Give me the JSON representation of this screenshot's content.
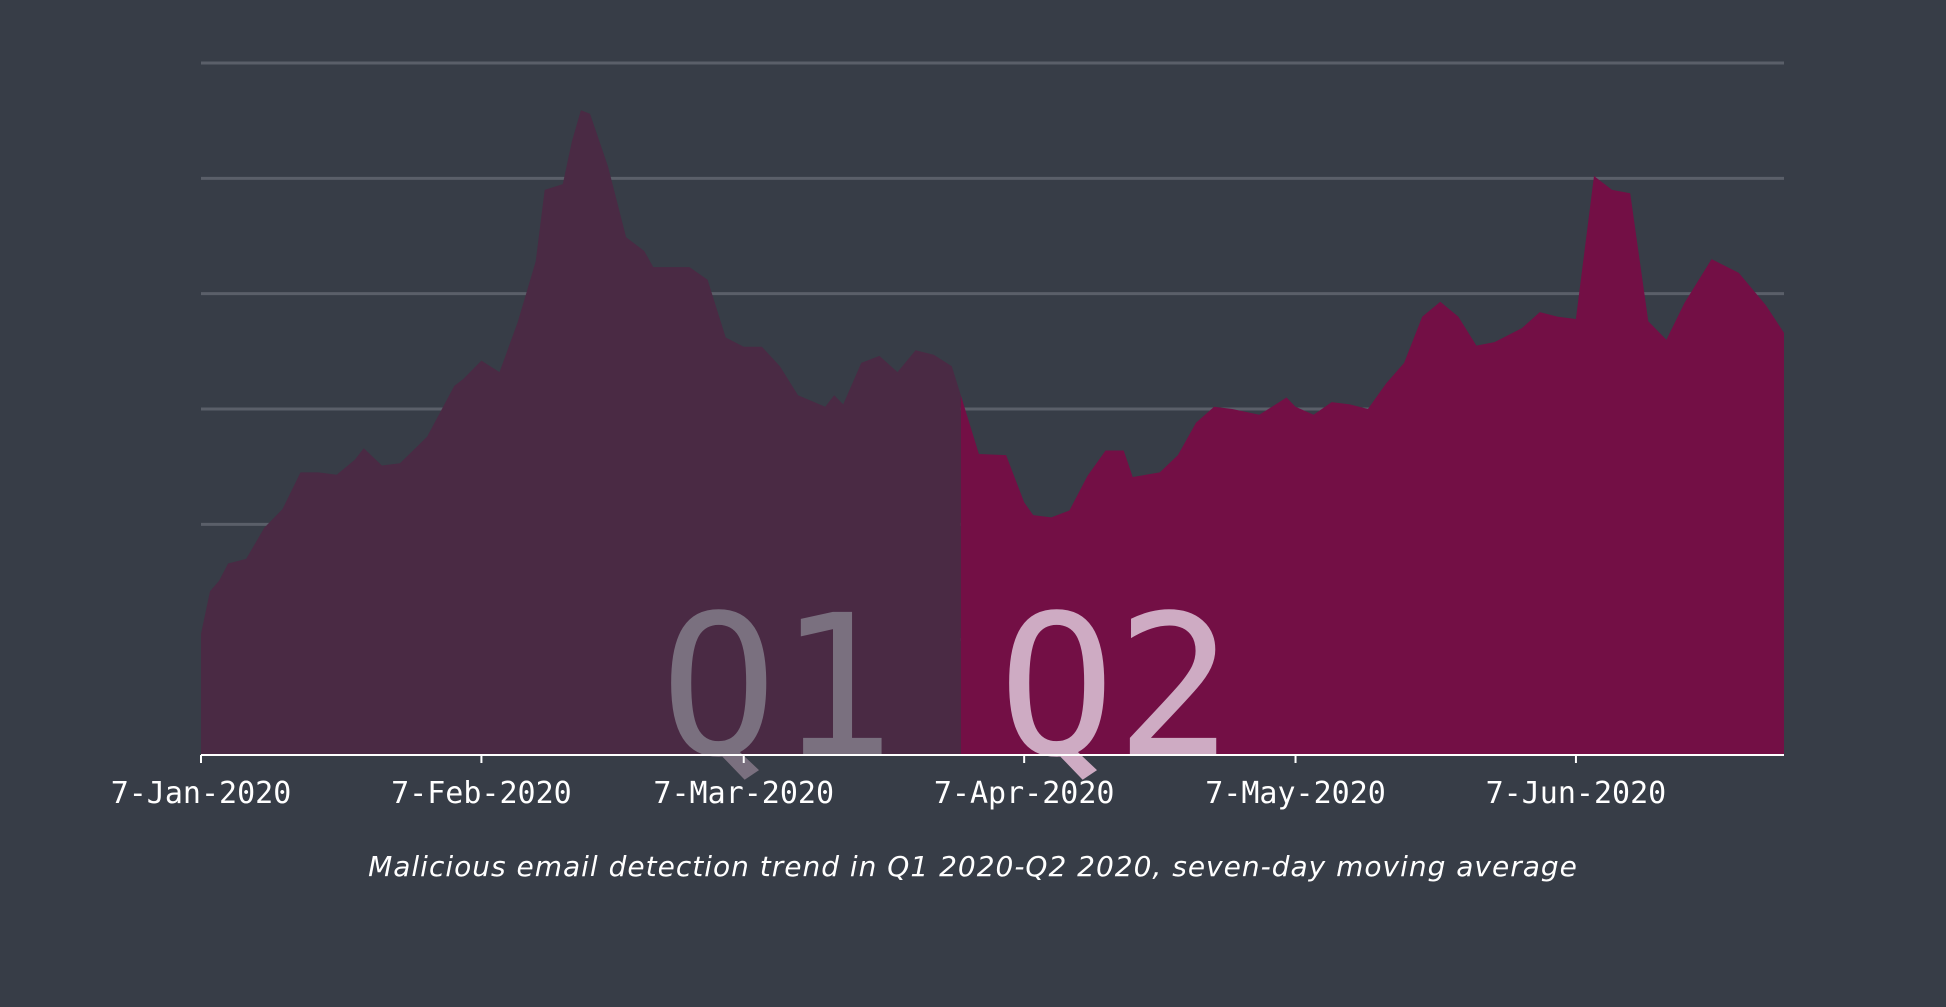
{
  "chart_data": {
    "type": "area",
    "title": "",
    "caption": "Malicious email detection trend in Q1 2020-Q2 2020, seven-day moving average",
    "xlabel": "",
    "ylabel": "",
    "grid": true,
    "x_tick_labels": [
      "7-Jan-2020",
      "7-Feb-2020",
      "7-Mar-2020",
      "7-Apr-2020",
      "7-May-2020",
      "7-Jun-2020"
    ],
    "x_tick_values": [
      "2020-01-07",
      "2020-02-07",
      "2020-03-07",
      "2020-04-07",
      "2020-05-07",
      "2020-06-07"
    ],
    "xlim": [
      "2020-01-07",
      "2020-06-30"
    ],
    "ylim": [
      0,
      6
    ],
    "regions": [
      {
        "name": "Q1",
        "label": "Q1",
        "start": "2020-01-07",
        "end": "2020-03-31",
        "color": "#4a2a44",
        "label_color": "#7a707f"
      },
      {
        "name": "Q2",
        "label": "Q2",
        "start": "2020-03-31",
        "end": "2020-06-30",
        "color": "#730f45",
        "label_color": "#ceabc3"
      }
    ],
    "series": [
      {
        "values": [
          {
            "x": "2020-01-07",
            "y": 1.05
          },
          {
            "x": "2020-01-08",
            "y": 1.42
          },
          {
            "x": "2020-01-09",
            "y": 1.51
          },
          {
            "x": "2020-01-10",
            "y": 1.66
          },
          {
            "x": "2020-01-12",
            "y": 1.7
          },
          {
            "x": "2020-01-14",
            "y": 1.97
          },
          {
            "x": "2020-01-16",
            "y": 2.13
          },
          {
            "x": "2020-01-18",
            "y": 2.45
          },
          {
            "x": "2020-01-20",
            "y": 2.45
          },
          {
            "x": "2020-01-22",
            "y": 2.43
          },
          {
            "x": "2020-01-24",
            "y": 2.56
          },
          {
            "x": "2020-01-25",
            "y": 2.66
          },
          {
            "x": "2020-01-27",
            "y": 2.51
          },
          {
            "x": "2020-01-29",
            "y": 2.53
          },
          {
            "x": "2020-02-01",
            "y": 2.76
          },
          {
            "x": "2020-02-04",
            "y": 3.2
          },
          {
            "x": "2020-02-05",
            "y": 3.26
          },
          {
            "x": "2020-02-07",
            "y": 3.42
          },
          {
            "x": "2020-02-09",
            "y": 3.32
          },
          {
            "x": "2020-02-11",
            "y": 3.75
          },
          {
            "x": "2020-02-13",
            "y": 4.28
          },
          {
            "x": "2020-02-14",
            "y": 4.9
          },
          {
            "x": "2020-02-16",
            "y": 4.95
          },
          {
            "x": "2020-02-17",
            "y": 5.32
          },
          {
            "x": "2020-02-18",
            "y": 5.59
          },
          {
            "x": "2020-02-19",
            "y": 5.56
          },
          {
            "x": "2020-02-21",
            "y": 5.1
          },
          {
            "x": "2020-02-23",
            "y": 4.49
          },
          {
            "x": "2020-02-25",
            "y": 4.37
          },
          {
            "x": "2020-02-26",
            "y": 4.23
          },
          {
            "x": "2020-03-01",
            "y": 4.23
          },
          {
            "x": "2020-03-03",
            "y": 4.12
          },
          {
            "x": "2020-03-05",
            "y": 3.62
          },
          {
            "x": "2020-03-07",
            "y": 3.54
          },
          {
            "x": "2020-03-09",
            "y": 3.54
          },
          {
            "x": "2020-03-11",
            "y": 3.37
          },
          {
            "x": "2020-03-13",
            "y": 3.12
          },
          {
            "x": "2020-03-16",
            "y": 3.02
          },
          {
            "x": "2020-03-17",
            "y": 3.12
          },
          {
            "x": "2020-03-18",
            "y": 3.04
          },
          {
            "x": "2020-03-20",
            "y": 3.4
          },
          {
            "x": "2020-03-22",
            "y": 3.46
          },
          {
            "x": "2020-03-24",
            "y": 3.32
          },
          {
            "x": "2020-03-26",
            "y": 3.51
          },
          {
            "x": "2020-03-28",
            "y": 3.47
          },
          {
            "x": "2020-03-30",
            "y": 3.37
          },
          {
            "x": "2020-03-31",
            "y": 3.12
          },
          {
            "x": "2020-04-02",
            "y": 2.61
          },
          {
            "x": "2020-04-05",
            "y": 2.6
          },
          {
            "x": "2020-04-07",
            "y": 2.19
          },
          {
            "x": "2020-04-08",
            "y": 2.08
          },
          {
            "x": "2020-04-10",
            "y": 2.06
          },
          {
            "x": "2020-04-12",
            "y": 2.12
          },
          {
            "x": "2020-04-14",
            "y": 2.42
          },
          {
            "x": "2020-04-16",
            "y": 2.64
          },
          {
            "x": "2020-04-18",
            "y": 2.64
          },
          {
            "x": "2020-04-19",
            "y": 2.41
          },
          {
            "x": "2020-04-22",
            "y": 2.45
          },
          {
            "x": "2020-04-24",
            "y": 2.6
          },
          {
            "x": "2020-04-26",
            "y": 2.88
          },
          {
            "x": "2020-04-28",
            "y": 3.02
          },
          {
            "x": "2020-04-30",
            "y": 3.0
          },
          {
            "x": "2020-05-03",
            "y": 2.95
          },
          {
            "x": "2020-05-06",
            "y": 3.1
          },
          {
            "x": "2020-05-07",
            "y": 3.02
          },
          {
            "x": "2020-05-09",
            "y": 2.95
          },
          {
            "x": "2020-05-11",
            "y": 3.06
          },
          {
            "x": "2020-05-13",
            "y": 3.04
          },
          {
            "x": "2020-05-15",
            "y": 3.0
          },
          {
            "x": "2020-05-17",
            "y": 3.22
          },
          {
            "x": "2020-05-19",
            "y": 3.4
          },
          {
            "x": "2020-05-21",
            "y": 3.8
          },
          {
            "x": "2020-05-23",
            "y": 3.93
          },
          {
            "x": "2020-05-25",
            "y": 3.8
          },
          {
            "x": "2020-05-27",
            "y": 3.55
          },
          {
            "x": "2020-05-29",
            "y": 3.58
          },
          {
            "x": "2020-06-01",
            "y": 3.7
          },
          {
            "x": "2020-06-03",
            "y": 3.84
          },
          {
            "x": "2020-06-05",
            "y": 3.8
          },
          {
            "x": "2020-06-07",
            "y": 3.78
          },
          {
            "x": "2020-06-09",
            "y": 5.02
          },
          {
            "x": "2020-06-11",
            "y": 4.9
          },
          {
            "x": "2020-06-13",
            "y": 4.87
          },
          {
            "x": "2020-06-15",
            "y": 3.76
          },
          {
            "x": "2020-06-17",
            "y": 3.6
          },
          {
            "x": "2020-06-19",
            "y": 3.92
          },
          {
            "x": "2020-06-22",
            "y": 4.3
          },
          {
            "x": "2020-06-25",
            "y": 4.18
          },
          {
            "x": "2020-06-28",
            "y": 3.9
          },
          {
            "x": "2020-06-30",
            "y": 3.66
          }
        ]
      }
    ]
  }
}
